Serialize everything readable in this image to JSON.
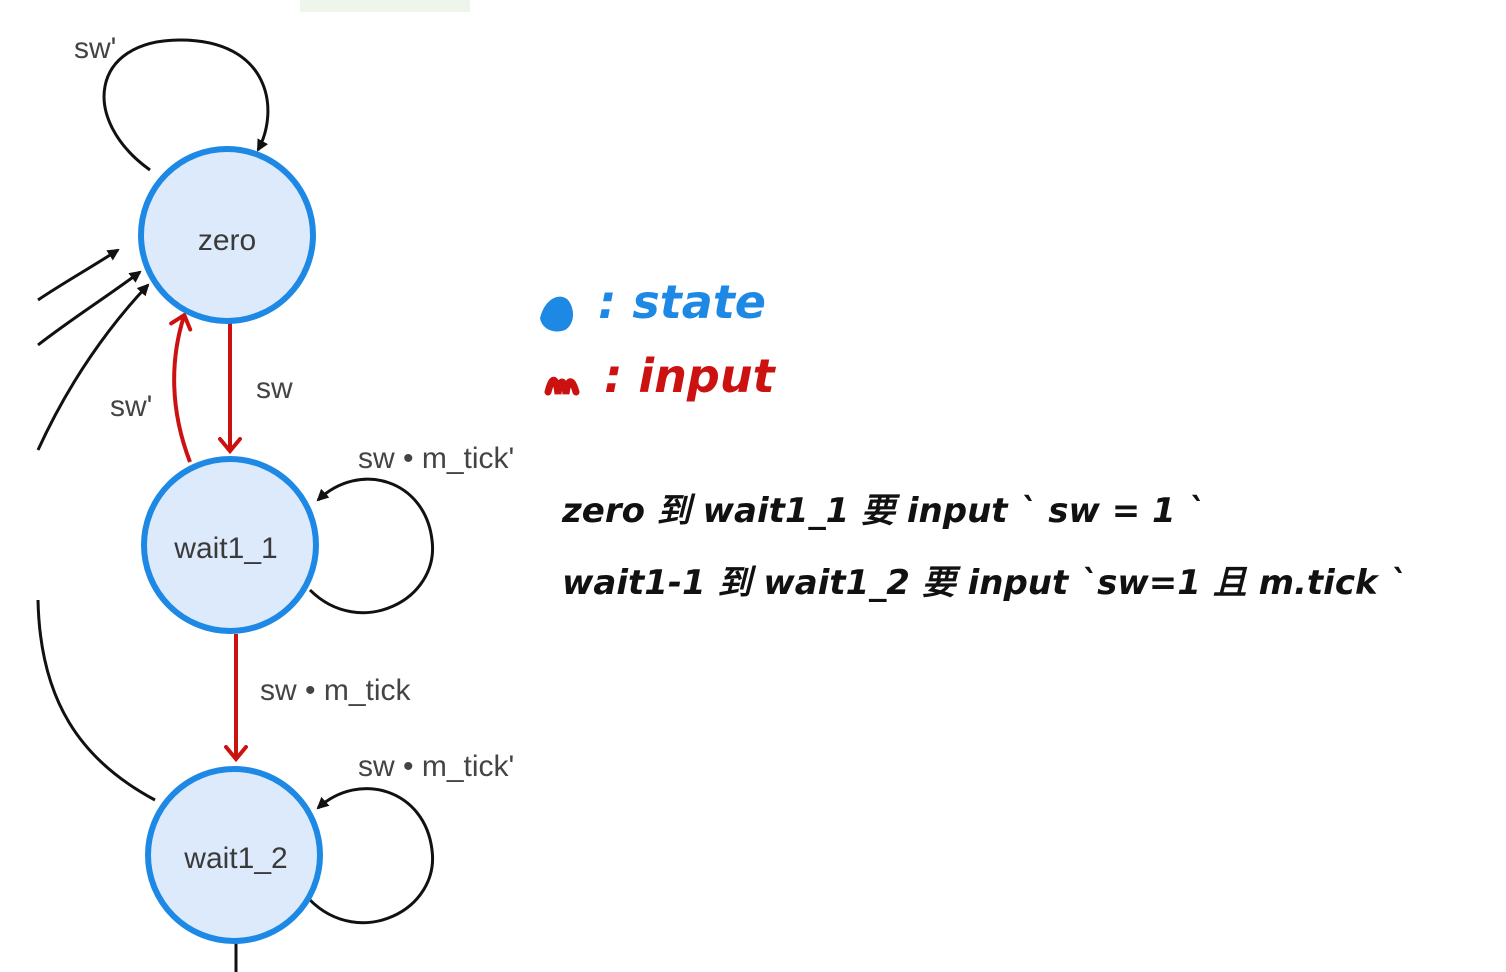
{
  "diagram": {
    "states": [
      {
        "id": "zero",
        "label": "zero"
      },
      {
        "id": "wait1_1",
        "label": "wait1_1"
      },
      {
        "id": "wait1_2",
        "label": "wait1_2"
      }
    ],
    "transitions": [
      {
        "from": "zero",
        "to": "zero",
        "label": "sw'",
        "highlight": false
      },
      {
        "from": "zero",
        "to": "wait1_1",
        "label": "sw",
        "highlight": true
      },
      {
        "from": "wait1_1",
        "to": "zero",
        "label": "sw'",
        "highlight": true
      },
      {
        "from": "wait1_1",
        "to": "wait1_1",
        "label": "sw • m_tick'",
        "highlight": false
      },
      {
        "from": "wait1_1",
        "to": "wait1_2",
        "label": "sw • m_tick",
        "highlight": true
      },
      {
        "from": "wait1_2",
        "to": "wait1_2",
        "label": "sw • m_tick'",
        "highlight": false
      }
    ]
  },
  "legend": {
    "state_label": ": state",
    "input_label": ": input"
  },
  "notes": {
    "line1": "zero 到 wait1_1 要 input ` sw = 1 `",
    "line2": "wait1-1 到 wait1_2 要 input `sw=1 且 m.tick `"
  },
  "colors": {
    "state_fill": "#ddeafb",
    "state_stroke": "#1e88e5",
    "highlight": "#cc1111",
    "edge": "#111111",
    "legend_state": "#1e88e5",
    "legend_input": "#cc1111"
  }
}
